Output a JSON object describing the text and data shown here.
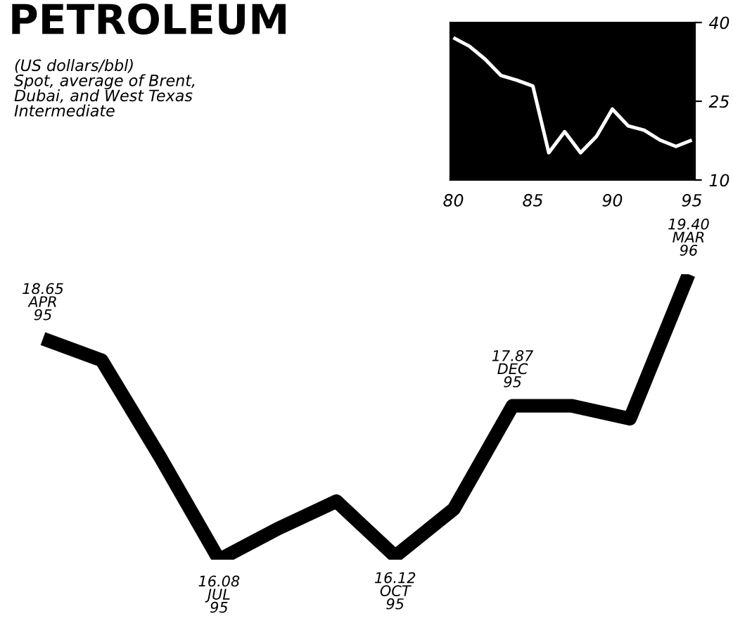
{
  "chart_data": [
    {
      "type": "line",
      "title": "PETROLEUM",
      "subtitle": "(US dollars/bbl)\nSpot, average of Brent,\nDubai, and West Texas\nIntermediate",
      "categories": [
        null,
        null,
        null,
        null,
        null,
        null,
        null,
        null,
        null,
        null,
        null,
        null
      ],
      "series": [
        {
          "color": "#000000",
          "values": [
            18.65,
            18.4,
            17.27,
            16.08,
            16.44,
            16.76,
            16.12,
            16.67,
            17.87,
            17.87,
            17.72,
            19.4
          ],
          "value_labels": [
            "18.65\nAPR\n95",
            null,
            null,
            "16.08\nJUL\n95",
            null,
            null,
            "16.12\nOCT\n95",
            null,
            "17.87\nDEC\n95",
            null,
            null,
            "19.40\nMAR\n96"
          ]
        }
      ],
      "grid": false,
      "legend": false
    },
    {
      "type": "line",
      "x": [
        80,
        81,
        82,
        83,
        84,
        85,
        86,
        87,
        88,
        89,
        90,
        91,
        92,
        93,
        94,
        95
      ],
      "series": [
        {
          "color": "#ffffff",
          "values": [
            37.1,
            35.5,
            33.0,
            29.9,
            29.0,
            27.9,
            15.2,
            19.2,
            15.2,
            18.3,
            23.5,
            20.3,
            19.5,
            17.6,
            16.4,
            17.6
          ]
        }
      ],
      "xlim": [
        79.8,
        95.2
      ],
      "xticks": [
        80,
        85,
        90,
        95
      ],
      "ylim": [
        10,
        40
      ],
      "yticks": [
        10,
        25,
        40
      ],
      "grid": false,
      "legend": false
    }
  ]
}
